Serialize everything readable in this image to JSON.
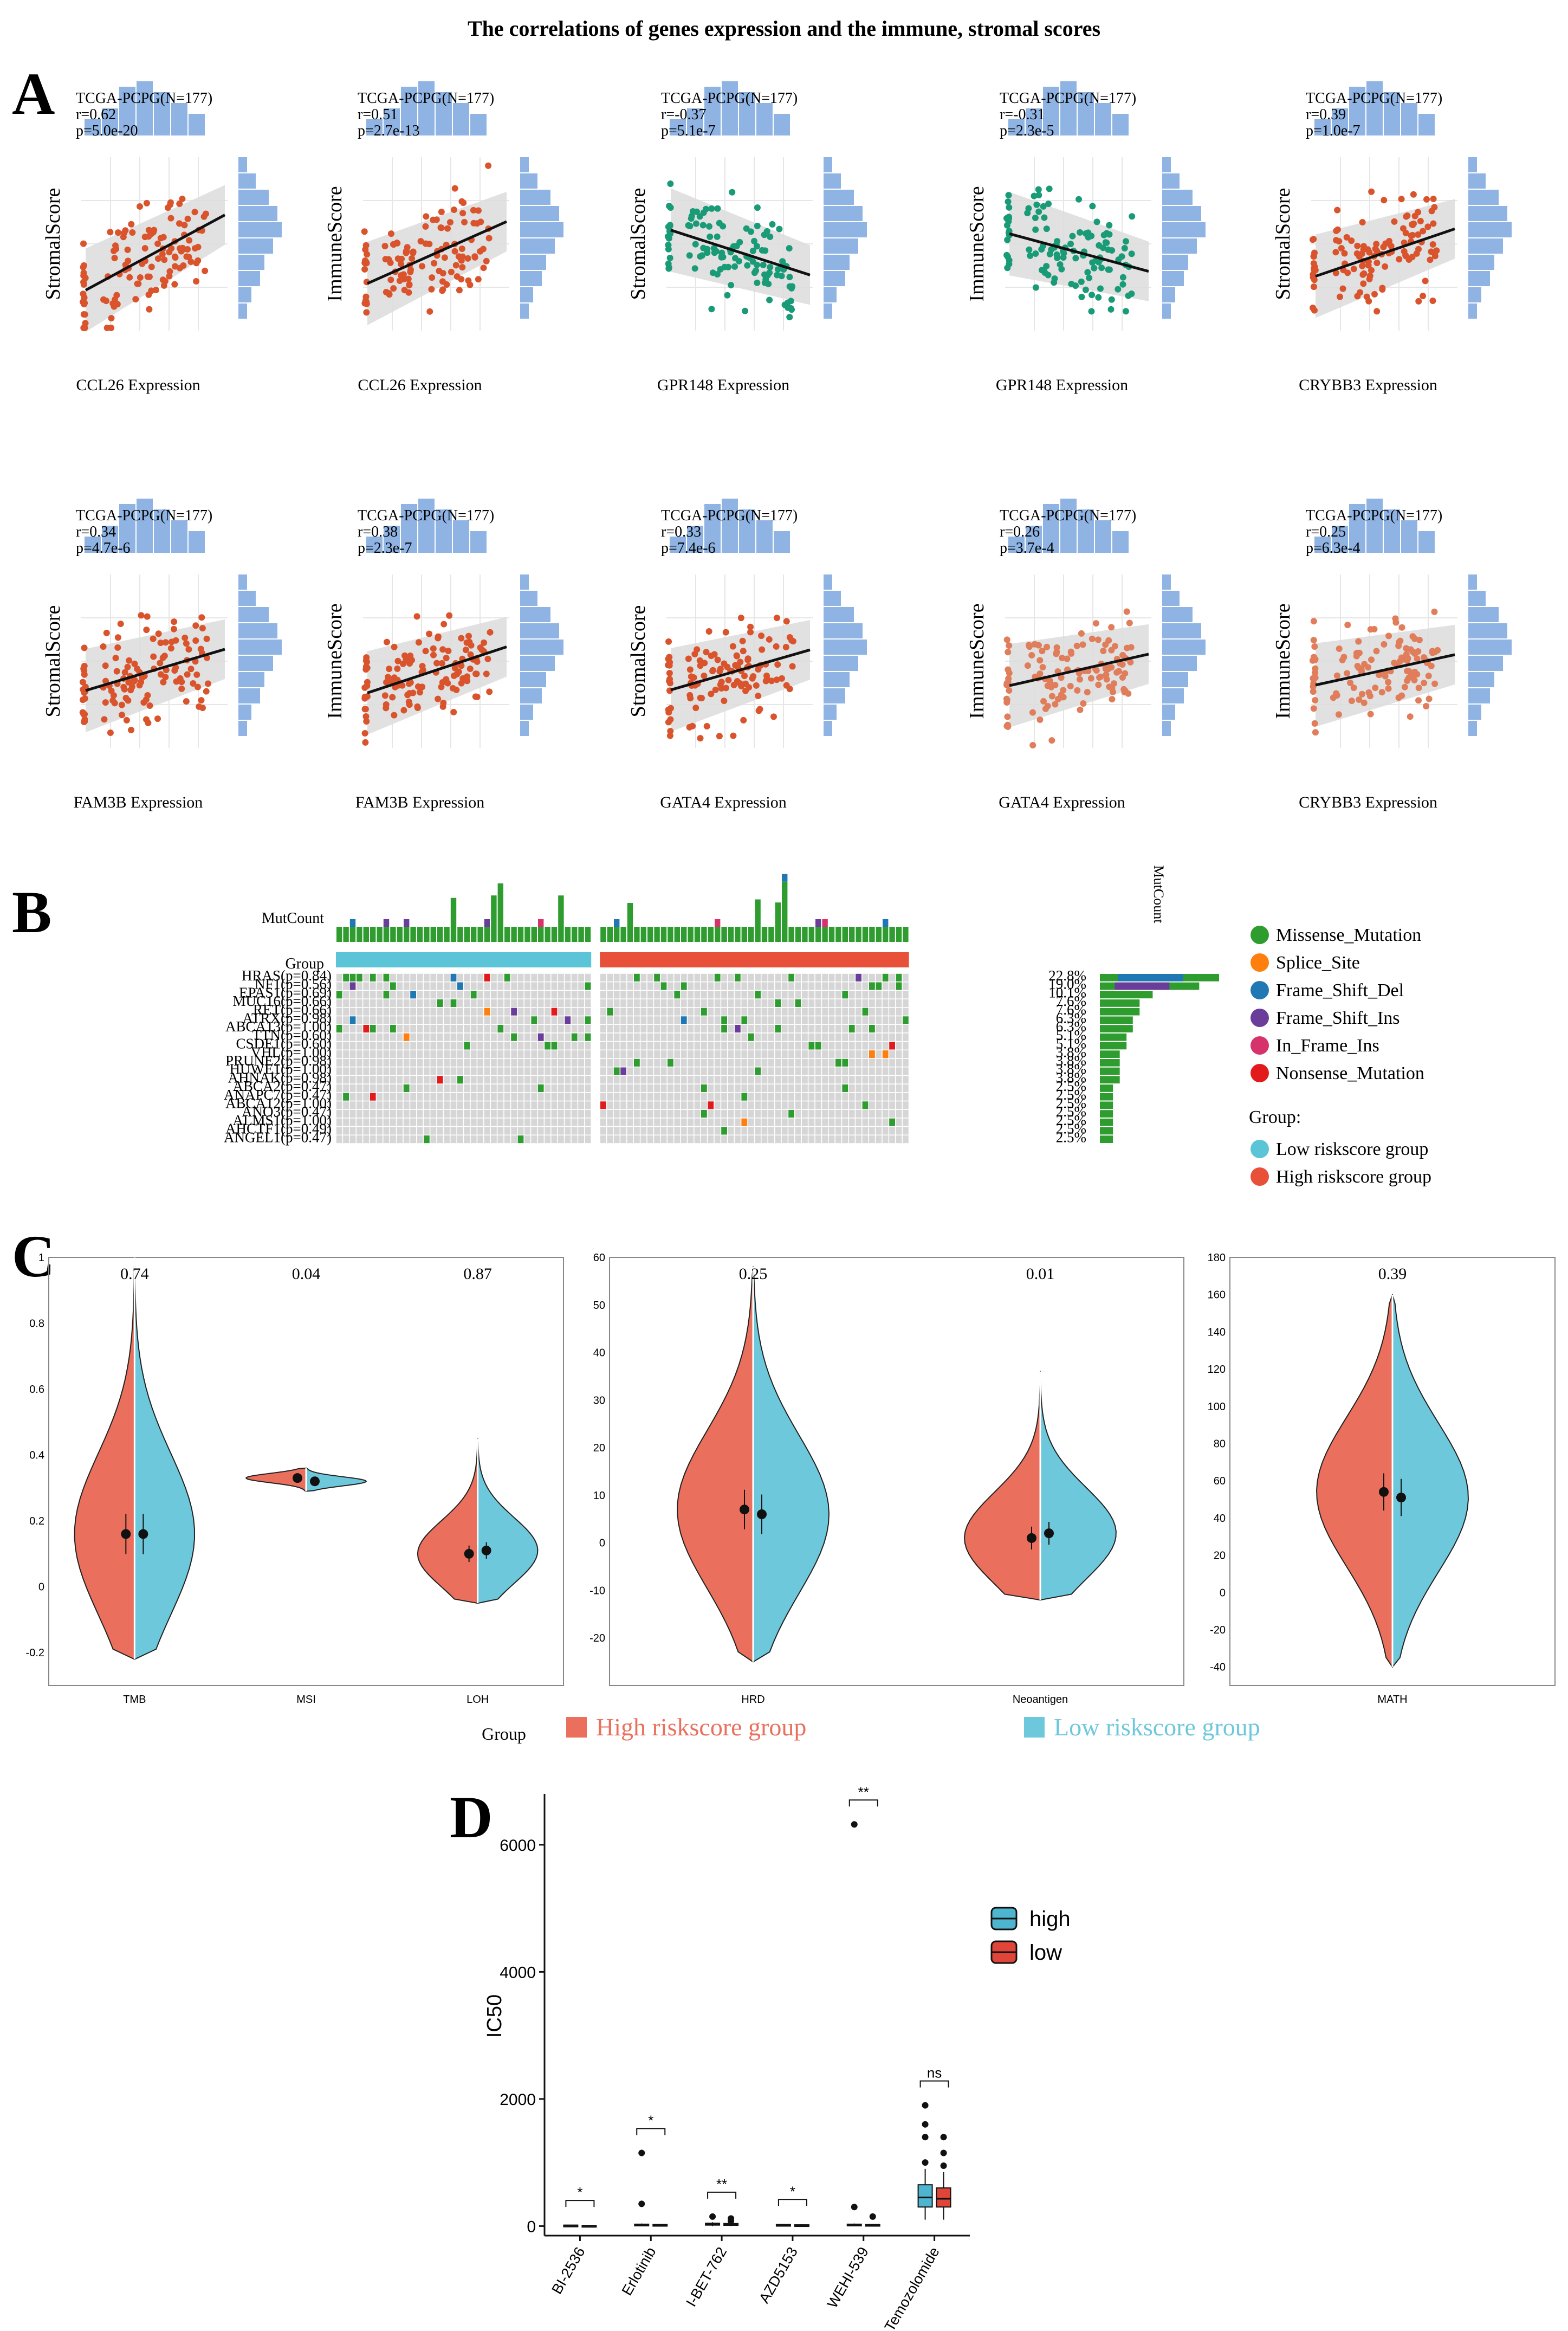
{
  "figure_title": "The correlations of genes expression and the immune, stromal scores",
  "panel_labels": {
    "A": "A",
    "B": "B",
    "C": "C",
    "D": "D"
  },
  "colors": {
    "orange": "#d9542c",
    "light_orange": "#e07d5a",
    "teal": "#1a9b77",
    "hist": "#8fb4e3",
    "band": "#dcdcdc",
    "green": "#2e9c2e",
    "splice": "#ff7f0e",
    "fsdel": "#1f77b4",
    "fsins": "#6a3d9a",
    "inframe": "#d6336c",
    "nonsense": "#e31a1c",
    "low_group": "#5bc4d6",
    "high_group": "#e8503a",
    "violin_high": "#ea6f5c",
    "violin_low": "#6ec8dc",
    "box_high": "#4db5d0",
    "box_low": "#e0453a"
  },
  "chart_data": [
    {
      "type": "scatter",
      "panel": "A",
      "subplots": [
        {
          "cohort": "TCGA-PCPG(N=177)",
          "r": "r=0.62",
          "p": "p=5.0e-20",
          "ylabel": "StromalScore",
          "xlabel": "CCL26 Expression",
          "slope": 0.62,
          "color": "orange"
        },
        {
          "cohort": "TCGA-PCPG(N=177)",
          "r": "r=0.51",
          "p": "p=2.7e-13",
          "ylabel": "ImmuneScore",
          "xlabel": "CCL26 Expression",
          "slope": 0.51,
          "color": "orange"
        },
        {
          "cohort": "TCGA-PCPG(N=177)",
          "r": "r=-0.37",
          "p": "p=5.1e-7",
          "ylabel": "StromalScore",
          "xlabel": "GPR148 Expression",
          "slope": -0.37,
          "color": "teal"
        },
        {
          "cohort": "TCGA-PCPG(N=177)",
          "r": "r=-0.31",
          "p": "p=2.3e-5",
          "ylabel": "ImmuneScore",
          "xlabel": "GPR148 Expression",
          "slope": -0.31,
          "color": "teal"
        },
        {
          "cohort": "TCGA-PCPG(N=177)",
          "r": "r=0.39",
          "p": "p=1.0e-7",
          "ylabel": "StromalScore",
          "xlabel": "CRYBB3 Expression",
          "slope": 0.39,
          "color": "orange"
        },
        {
          "cohort": "TCGA-PCPG(N=177)",
          "r": "r=0.34",
          "p": "p=4.7e-6",
          "ylabel": "StromalScore",
          "xlabel": "FAM3B Expression",
          "slope": 0.34,
          "color": "orange"
        },
        {
          "cohort": "TCGA-PCPG(N=177)",
          "r": "r=0.38",
          "p": "p=2.3e-7",
          "ylabel": "ImmuneScore",
          "xlabel": "FAM3B Expression",
          "slope": 0.38,
          "color": "orange"
        },
        {
          "cohort": "TCGA-PCPG(N=177)",
          "r": "r=0.33",
          "p": "p=7.4e-6",
          "ylabel": "StromalScore",
          "xlabel": "GATA4 Expression",
          "slope": 0.33,
          "color": "orange"
        },
        {
          "cohort": "TCGA-PCPG(N=177)",
          "r": "r=0.26",
          "p": "p=3.7e-4",
          "ylabel": "ImmuneScore",
          "xlabel": "GATA4 Expression",
          "slope": 0.26,
          "color": "light_orange"
        },
        {
          "cohort": "TCGA-PCPG(N=177)",
          "r": "r=0.25",
          "p": "p=6.3e-4",
          "ylabel": "ImmuneScore",
          "xlabel": "CRYBB3 Expression",
          "slope": 0.25,
          "color": "light_orange"
        }
      ]
    },
    {
      "type": "heatmap",
      "panel": "B",
      "mutcount_label": "MutCount",
      "mutcount_axis_label": "MutCount",
      "group_label": "Group",
      "genes": [
        {
          "label": "HRAS(p=0.84)",
          "pct": "22.8%",
          "freq": 22.8
        },
        {
          "label": "NF1(p=0.56)",
          "pct": "19.0%",
          "freq": 19.0
        },
        {
          "label": "EPAS1(p=0.69)",
          "pct": "10.1%",
          "freq": 10.1
        },
        {
          "label": "MUC16(p=0.66)",
          "pct": "7.6%",
          "freq": 7.6
        },
        {
          "label": "RET(p=0.66)",
          "pct": "7.6%",
          "freq": 7.6
        },
        {
          "label": "ATRX(p=0.98)",
          "pct": "6.3%",
          "freq": 6.3
        },
        {
          "label": "ABCA13(p=1.00)",
          "pct": "6.3%",
          "freq": 6.3
        },
        {
          "label": "TTN(p=0.60)",
          "pct": "5.1%",
          "freq": 5.1
        },
        {
          "label": "CSDE1(p=0.60)",
          "pct": "5.1%",
          "freq": 5.1
        },
        {
          "label": "VHL(p=1.00)",
          "pct": "3.8%",
          "freq": 3.8
        },
        {
          "label": "PRUNE2(p=0.98)",
          "pct": "3.8%",
          "freq": 3.8
        },
        {
          "label": "HUWE1(p=1.00)",
          "pct": "3.8%",
          "freq": 3.8
        },
        {
          "label": "AHNAK(p=0.98)",
          "pct": "3.8%",
          "freq": 3.8
        },
        {
          "label": "ABCA2(p=0.47)",
          "pct": "2.5%",
          "freq": 2.5
        },
        {
          "label": "ANAPC7(p=0.47)",
          "pct": "2.5%",
          "freq": 2.5
        },
        {
          "label": "ABCA12(p=1.00)",
          "pct": "2.5%",
          "freq": 2.5
        },
        {
          "label": "ANO3(p=0.47)",
          "pct": "2.5%",
          "freq": 2.5
        },
        {
          "label": "ALMS1(p=1.00)",
          "pct": "2.5%",
          "freq": 2.5
        },
        {
          "label": "AHCTF1(p=0.49)",
          "pct": "2.5%",
          "freq": 2.5
        },
        {
          "label": "ANGEL1(p=0.47)",
          "pct": "2.5%",
          "freq": 2.5
        }
      ],
      "legend_types": [
        "Missense_Mutation",
        "Splice_Site",
        "Frame_Shift_Del",
        "Frame_Shift_Ins",
        "In_Frame_Ins",
        "Nonsense_Mutation"
      ],
      "legend_group_title": "Group:",
      "legend_groups": [
        "Low riskscore group",
        "High riskscore group"
      ],
      "n_low": 38,
      "n_high": 46
    },
    {
      "type": "violin",
      "panel": "C",
      "legend_title": "Group",
      "legend": [
        "High riskscore group",
        "Low riskscore group"
      ],
      "subplots": [
        {
          "ylim": [
            -0.3,
            1.0
          ],
          "yticks": [
            -0.2,
            0.0,
            0.2,
            0.4,
            0.6,
            0.8,
            1.0
          ],
          "categories": [
            "TMB",
            "MSI",
            "LOH"
          ],
          "pvalues": [
            "0.74",
            "0.04",
            "0.87"
          ],
          "means_high": [
            0.16,
            0.33,
            0.1
          ],
          "means_low": [
            0.16,
            0.32,
            0.11
          ],
          "ranges": [
            [
              -0.22,
              1.0
            ],
            [
              0.29,
              0.36
            ],
            [
              -0.05,
              0.45
            ]
          ]
        },
        {
          "ylim": [
            -30,
            60
          ],
          "yticks": [
            -20,
            -10,
            0,
            10,
            20,
            30,
            40,
            50,
            60
          ],
          "categories": [
            "HRD",
            "Neoantigen"
          ],
          "pvalues": [
            "0.25",
            "0.01"
          ],
          "means_high": [
            7,
            1
          ],
          "means_low": [
            6,
            2
          ],
          "ranges": [
            [
              -25,
              58
            ],
            [
              -12,
              36
            ]
          ]
        },
        {
          "ylim": [
            -50,
            180
          ],
          "yticks": [
            -40,
            -20,
            0,
            20,
            40,
            60,
            80,
            100,
            120,
            140,
            160,
            180
          ],
          "categories": [
            "MATH"
          ],
          "pvalues": [
            "0.39"
          ],
          "means_high": [
            54
          ],
          "means_low": [
            51
          ],
          "ranges": [
            [
              -40,
              160
            ]
          ]
        }
      ]
    },
    {
      "type": "box",
      "panel": "D",
      "ylabel": "IC50",
      "ylim": [
        -150,
        6800
      ],
      "yticks": [
        0,
        2000,
        4000,
        6000
      ],
      "categories": [
        "BI-2536",
        "Erlotinib",
        "I-BET-762",
        "AZD5153",
        "WEHI-539",
        "Temozolomide"
      ],
      "significance": [
        "*",
        "*",
        "**",
        "*",
        "**",
        "ns"
      ],
      "legend": [
        "high",
        "low"
      ],
      "series": [
        {
          "name": "high",
          "median": [
            10,
            20,
            30,
            15,
            20,
            450
          ],
          "q1": [
            5,
            10,
            15,
            8,
            10,
            300
          ],
          "q3": [
            15,
            30,
            45,
            25,
            30,
            650
          ],
          "wlo": [
            0,
            0,
            0,
            0,
            0,
            100
          ],
          "whi": [
            20,
            40,
            60,
            35,
            40,
            900
          ],
          "outliers": [
            [],
            [
              350,
              1150
            ],
            [
              150
            ],
            [],
            [
              300,
              6320
            ],
            [
              1000,
              1400,
              1600,
              1900
            ]
          ]
        },
        {
          "name": "low",
          "median": [
            5,
            15,
            25,
            10,
            15,
            430
          ],
          "q1": [
            2,
            8,
            12,
            5,
            8,
            300
          ],
          "q3": [
            10,
            25,
            40,
            20,
            25,
            600
          ],
          "wlo": [
            0,
            0,
            0,
            0,
            0,
            100
          ],
          "whi": [
            15,
            35,
            55,
            30,
            35,
            850
          ],
          "outliers": [
            [],
            [],
            [
              80,
              120
            ],
            [],
            [
              150
            ],
            [
              950,
              1150,
              1400
            ]
          ]
        }
      ]
    }
  ]
}
